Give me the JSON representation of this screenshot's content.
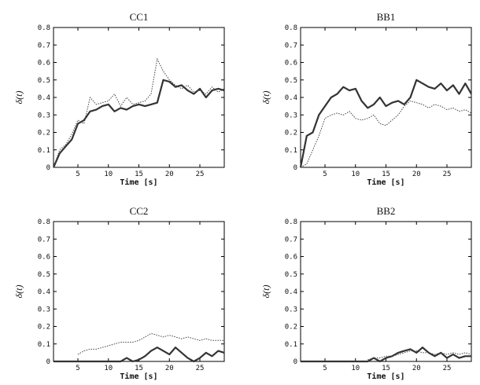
{
  "chart_data": [
    {
      "type": "line",
      "title": "CC1",
      "xlabel": "Time [s]",
      "ylabel": "δ(t)",
      "xlim": [
        1,
        29
      ],
      "ylim": [
        0,
        0.8
      ],
      "xticks": [
        5,
        10,
        15,
        20,
        25
      ],
      "yticks": [
        0,
        0.1,
        0.2,
        0.3,
        0.4,
        0.5,
        0.6,
        0.7,
        0.8
      ],
      "grid": false,
      "series": [
        {
          "style": "solid",
          "x": [
            1,
            2,
            3,
            4,
            5,
            6,
            7,
            8,
            9,
            10,
            11,
            12,
            13,
            14,
            15,
            16,
            17,
            18,
            19,
            20,
            21,
            22,
            23,
            24,
            25,
            26,
            27,
            28,
            29
          ],
          "y": [
            0,
            0.08,
            0.12,
            0.16,
            0.25,
            0.27,
            0.32,
            0.33,
            0.35,
            0.36,
            0.32,
            0.34,
            0.33,
            0.35,
            0.36,
            0.35,
            0.36,
            0.37,
            0.5,
            0.49,
            0.46,
            0.47,
            0.44,
            0.42,
            0.45,
            0.4,
            0.44,
            0.45,
            0.44
          ]
        },
        {
          "style": "dotted",
          "x": [
            1,
            2,
            3,
            4,
            5,
            6,
            7,
            8,
            9,
            10,
            11,
            12,
            13,
            14,
            15,
            16,
            17,
            18,
            19,
            20,
            21,
            22,
            23,
            24,
            25,
            26,
            27,
            28,
            29
          ],
          "y": [
            0,
            0.1,
            0.13,
            0.19,
            0.27,
            0.25,
            0.4,
            0.36,
            0.37,
            0.38,
            0.42,
            0.35,
            0.4,
            0.36,
            0.37,
            0.38,
            0.42,
            0.62,
            0.55,
            0.5,
            0.47,
            0.45,
            0.47,
            0.43,
            0.44,
            0.42,
            0.46,
            0.43,
            0.45
          ]
        }
      ]
    },
    {
      "type": "line",
      "title": "BB1",
      "xlabel": "Time [s]",
      "ylabel": "δ(t)",
      "xlim": [
        1,
        29
      ],
      "ylim": [
        0,
        0.8
      ],
      "xticks": [
        5,
        10,
        15,
        20,
        25
      ],
      "yticks": [
        0,
        0.1,
        0.2,
        0.3,
        0.4,
        0.5,
        0.6,
        0.7,
        0.8
      ],
      "grid": false,
      "series": [
        {
          "style": "solid",
          "x": [
            1,
            2,
            3,
            4,
            5,
            6,
            7,
            8,
            9,
            10,
            11,
            12,
            13,
            14,
            15,
            16,
            17,
            18,
            19,
            20,
            21,
            22,
            23,
            24,
            25,
            26,
            27,
            28,
            29
          ],
          "y": [
            0,
            0.18,
            0.2,
            0.3,
            0.35,
            0.4,
            0.42,
            0.46,
            0.44,
            0.45,
            0.38,
            0.34,
            0.36,
            0.4,
            0.35,
            0.37,
            0.38,
            0.36,
            0.4,
            0.5,
            0.48,
            0.46,
            0.45,
            0.48,
            0.44,
            0.47,
            0.42,
            0.48,
            0.42
          ]
        },
        {
          "style": "dotted",
          "x": [
            1,
            2,
            3,
            4,
            5,
            6,
            7,
            8,
            9,
            10,
            11,
            12,
            13,
            14,
            15,
            16,
            17,
            18,
            19,
            20,
            21,
            22,
            23,
            24,
            25,
            26,
            27,
            28,
            29
          ],
          "y": [
            0,
            0.02,
            0.1,
            0.18,
            0.28,
            0.3,
            0.31,
            0.3,
            0.32,
            0.28,
            0.27,
            0.28,
            0.3,
            0.25,
            0.24,
            0.27,
            0.3,
            0.35,
            0.38,
            0.37,
            0.36,
            0.34,
            0.36,
            0.35,
            0.33,
            0.34,
            0.32,
            0.33,
            0.31
          ]
        }
      ]
    },
    {
      "type": "line",
      "title": "CC2",
      "xlabel": "Time [s]",
      "ylabel": "δ(t)",
      "xlim": [
        1,
        29
      ],
      "ylim": [
        0,
        0.8
      ],
      "xticks": [
        5,
        10,
        15,
        20,
        25
      ],
      "yticks": [
        0,
        0.1,
        0.2,
        0.3,
        0.4,
        0.5,
        0.6,
        0.7,
        0.8
      ],
      "grid": false,
      "series": [
        {
          "style": "solid",
          "x": [
            1,
            5,
            10,
            11,
            12,
            13,
            14,
            15,
            16,
            17,
            18,
            19,
            20,
            21,
            22,
            23,
            24,
            25,
            26,
            27,
            28,
            29
          ],
          "y": [
            0,
            0,
            0,
            0,
            0,
            0.02,
            0,
            0.01,
            0.03,
            0.06,
            0.08,
            0.06,
            0.04,
            0.08,
            0.05,
            0.02,
            0.0,
            0.02,
            0.05,
            0.03,
            0.06,
            0.05
          ]
        },
        {
          "style": "dotted",
          "x": [
            5,
            6,
            7,
            8,
            9,
            10,
            11,
            12,
            13,
            14,
            15,
            16,
            17,
            18,
            19,
            20,
            21,
            22,
            23,
            24,
            25,
            26,
            27,
            28,
            29
          ],
          "y": [
            0.04,
            0.06,
            0.07,
            0.07,
            0.08,
            0.09,
            0.1,
            0.11,
            0.11,
            0.11,
            0.12,
            0.14,
            0.16,
            0.15,
            0.14,
            0.15,
            0.14,
            0.13,
            0.14,
            0.13,
            0.12,
            0.13,
            0.12,
            0.12,
            0.12
          ]
        }
      ]
    },
    {
      "type": "line",
      "title": "BB2",
      "xlabel": "Time [s]",
      "ylabel": "δ(t)",
      "xlim": [
        1,
        29
      ],
      "ylim": [
        0,
        0.8
      ],
      "xticks": [
        5,
        10,
        15,
        20,
        25
      ],
      "yticks": [
        0,
        0.1,
        0.2,
        0.3,
        0.4,
        0.5,
        0.6,
        0.7,
        0.8
      ],
      "grid": false,
      "series": [
        {
          "style": "solid",
          "x": [
            1,
            12,
            13,
            14,
            15,
            16,
            17,
            18,
            19,
            20,
            21,
            22,
            23,
            24,
            25,
            26,
            27,
            28,
            29
          ],
          "y": [
            0,
            0,
            0.02,
            0.0,
            0.02,
            0.03,
            0.05,
            0.06,
            0.07,
            0.05,
            0.08,
            0.05,
            0.03,
            0.05,
            0.02,
            0.04,
            0.02,
            0.03,
            0.03
          ]
        },
        {
          "style": "dotted",
          "x": [
            12,
            13,
            14,
            15,
            16,
            17,
            18,
            19,
            20,
            21,
            22,
            23,
            24,
            25,
            26,
            27,
            28,
            29
          ],
          "y": [
            0.01,
            0.02,
            0.02,
            0.03,
            0.03,
            0.04,
            0.05,
            0.06,
            0.06,
            0.05,
            0.05,
            0.04,
            0.05,
            0.04,
            0.05,
            0.04,
            0.05,
            0.04
          ]
        }
      ]
    }
  ]
}
